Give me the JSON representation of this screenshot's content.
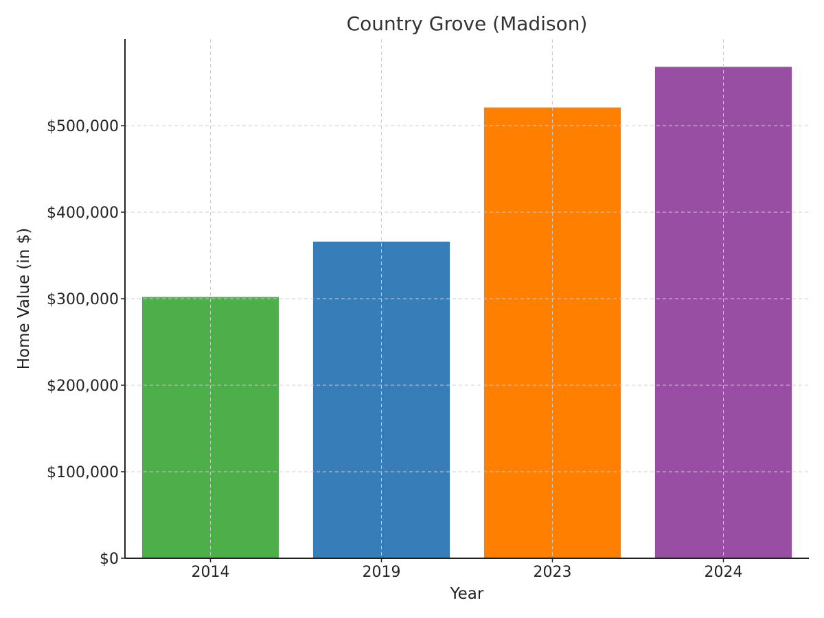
{
  "chart_data": {
    "type": "bar",
    "title": "Country Grove (Madison)",
    "xlabel": "Year",
    "ylabel": "Home Value (in $)",
    "categories": [
      "2014",
      "2019",
      "2023",
      "2024"
    ],
    "values": [
      302000,
      366000,
      521000,
      568000
    ],
    "colors": [
      "#4daf4a",
      "#377eb8",
      "#ff7f00",
      "#984ea3"
    ],
    "ylim": [
      0,
      600000
    ],
    "yticks": [
      0,
      100000,
      200000,
      300000,
      400000,
      500000
    ],
    "ytick_labels": [
      "$0",
      "$100,000",
      "$200,000",
      "$300,000",
      "$400,000",
      "$500,000"
    ],
    "grid": true
  }
}
